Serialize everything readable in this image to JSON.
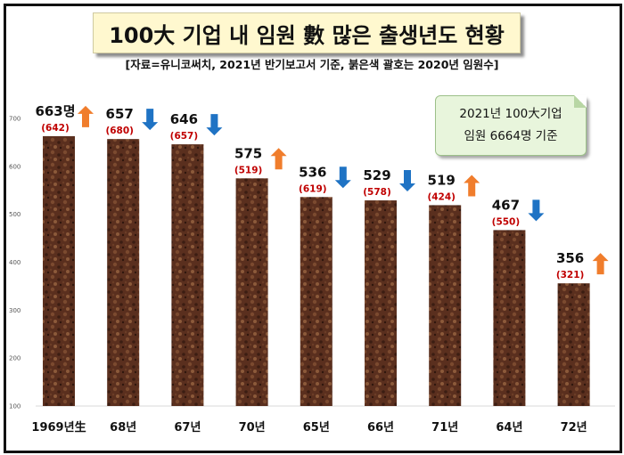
{
  "title": "100大 기업 내 임원 數 많은 출생년도 현황",
  "subtitle": "[자료=유니코써치, 2021년 반기보고서 기준, 붉은색 괄호는 2020년 임원수]",
  "info_box": {
    "line1": "2021년 100大기업",
    "line2": "임원 6664명 기준"
  },
  "colors": {
    "up_arrow": "#f07d2c",
    "down_arrow": "#1f73c4",
    "previous_value": "#c00000",
    "bar": "#5a2f1e"
  },
  "chart_data": {
    "type": "bar",
    "categories": [
      "1969년生",
      "68년",
      "67년",
      "70년",
      "65년",
      "66년",
      "71년",
      "64년",
      "72년"
    ],
    "series": [
      {
        "values": [
          663,
          657,
          646,
          575,
          536,
          529,
          519,
          467,
          356
        ]
      }
    ],
    "previous_values": [
      642,
      680,
      657,
      519,
      619,
      578,
      424,
      550,
      321
    ],
    "value_labels": [
      "663명",
      "657",
      "646",
      "575",
      "536",
      "529",
      "519",
      "467",
      "356"
    ],
    "previous_labels": [
      "(642)",
      "(680)",
      "(657)",
      "(519)",
      "(619)",
      "(578)",
      "(424)",
      "(550)",
      "(321)"
    ],
    "trend": [
      "up",
      "down",
      "down",
      "up",
      "down",
      "down",
      "up",
      "down",
      "up"
    ],
    "y_ticks": [
      "100",
      "200",
      "300",
      "400",
      "500",
      "600",
      "700"
    ],
    "ylim": [
      100,
      700
    ],
    "grid": false,
    "legend": "none"
  }
}
